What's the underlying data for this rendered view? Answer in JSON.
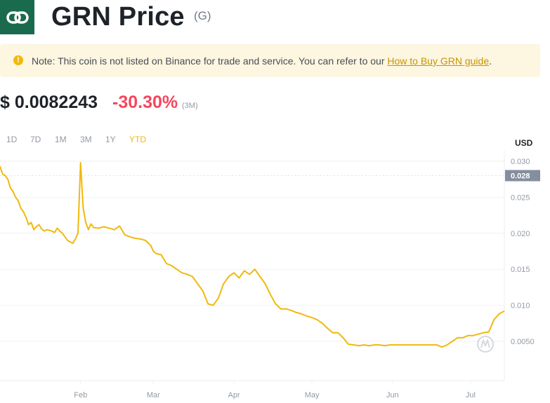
{
  "header": {
    "title": "GRN Price",
    "symbol": "(G)",
    "logo_icon": "link-chain-icon",
    "logo_color": "#1a6b4e"
  },
  "notice": {
    "icon": "exclamation-icon",
    "text": "Note: This coin is not listed on Binance for trade and service. You can refer to our ",
    "link_text": "How to Buy GRN guide",
    "suffix": "."
  },
  "price": {
    "value": "$ 0.0082243",
    "change": "-30.30%",
    "period": "(3M)",
    "change_color": "#f6465d"
  },
  "tabs": {
    "items": [
      "1D",
      "7D",
      "1M",
      "3M",
      "1Y",
      "YTD"
    ],
    "active": "YTD"
  },
  "chart_data": {
    "type": "line",
    "currency_label": "USD",
    "y_ticks": [
      "0.030",
      "0.025",
      "0.020",
      "0.015",
      "0.010",
      "0.0050"
    ],
    "y_tick_values": [
      0.03,
      0.025,
      0.02,
      0.015,
      0.01,
      0.005
    ],
    "current_label": "0.028",
    "ylim": [
      0.0,
      0.031
    ],
    "x_tick_labels": [
      "Feb",
      "Mar",
      "Apr",
      "May",
      "Jun",
      "Jul"
    ],
    "x_tick_values": [
      31,
      59,
      90,
      120,
      151,
      181
    ],
    "xlim": [
      0,
      194
    ],
    "line_color": "#f0b90b",
    "grid": true,
    "series": [
      {
        "x": [
          0,
          1,
          2,
          3,
          4,
          5,
          6,
          7,
          8,
          9,
          10,
          11,
          12,
          13,
          14,
          15,
          16,
          17,
          18,
          19,
          20,
          21,
          22,
          23,
          24,
          25,
          26,
          27,
          28,
          29,
          30,
          31,
          32,
          33,
          34,
          35,
          36,
          38,
          40,
          42,
          44,
          46,
          48,
          50,
          52,
          54,
          56,
          58,
          59,
          60,
          62,
          64,
          66,
          68,
          70,
          72,
          74,
          76,
          78,
          80,
          82,
          84,
          86,
          88,
          90,
          92,
          94,
          96,
          98,
          100,
          102,
          104,
          106,
          108,
          110,
          112,
          114,
          116,
          118,
          120,
          122,
          124,
          126,
          128,
          130,
          132,
          134,
          136,
          138,
          140,
          142,
          144,
          146,
          148,
          150,
          152,
          154,
          156,
          158,
          160,
          162,
          164,
          166,
          168,
          170,
          172,
          174,
          176,
          178,
          180,
          182,
          184,
          186,
          188,
          190,
          192,
          194
        ],
        "y": [
          0.0293,
          0.0282,
          0.028,
          0.0275,
          0.0263,
          0.0258,
          0.025,
          0.0245,
          0.0235,
          0.023,
          0.0222,
          0.0212,
          0.0215,
          0.0205,
          0.0209,
          0.0212,
          0.0206,
          0.0203,
          0.0205,
          0.0204,
          0.0203,
          0.0201,
          0.0207,
          0.0203,
          0.02,
          0.0195,
          0.019,
          0.0188,
          0.0186,
          0.0192,
          0.02,
          0.0298,
          0.0235,
          0.0215,
          0.0205,
          0.0213,
          0.0208,
          0.0207,
          0.0209,
          0.0207,
          0.0205,
          0.021,
          0.0198,
          0.0195,
          0.0193,
          0.0192,
          0.019,
          0.0183,
          0.0175,
          0.0172,
          0.017,
          0.0158,
          0.0155,
          0.015,
          0.0145,
          0.0143,
          0.014,
          0.013,
          0.012,
          0.0102,
          0.01,
          0.011,
          0.013,
          0.014,
          0.0145,
          0.0138,
          0.0148,
          0.0143,
          0.015,
          0.014,
          0.013,
          0.0115,
          0.0102,
          0.0095,
          0.0095,
          0.0093,
          0.009,
          0.0088,
          0.0085,
          0.0083,
          0.008,
          0.0075,
          0.0068,
          0.0062,
          0.0062,
          0.0055,
          0.0046,
          0.0045,
          0.0044,
          0.0045,
          0.0044,
          0.0045,
          0.0045,
          0.0044,
          0.0045,
          0.0045,
          0.0045,
          0.0045,
          0.0045,
          0.0045,
          0.0045,
          0.0045,
          0.0045,
          0.0045,
          0.0042,
          0.0045,
          0.005,
          0.0055,
          0.0055,
          0.0058,
          0.0058,
          0.006,
          0.0062,
          0.0063,
          0.008,
          0.0088,
          0.0092
        ]
      }
    ]
  }
}
